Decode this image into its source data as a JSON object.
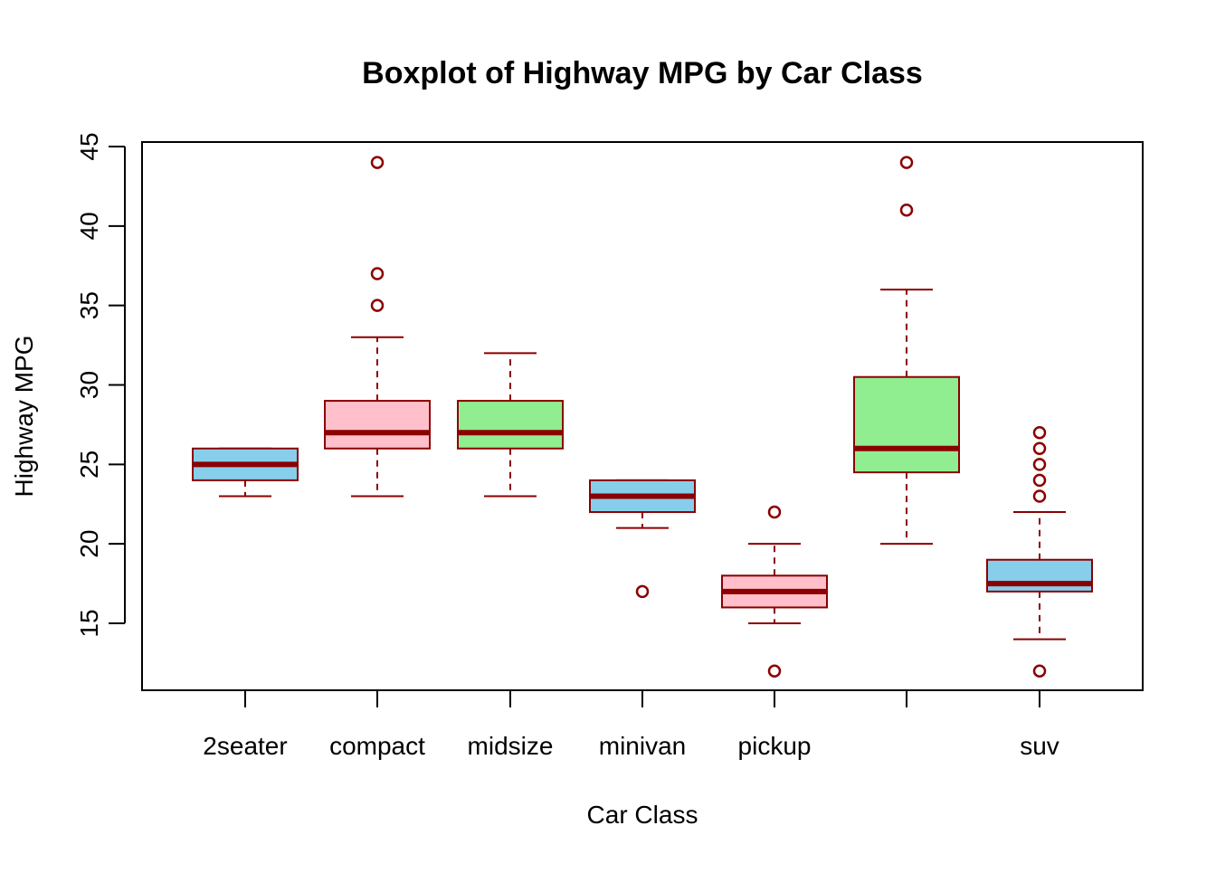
{
  "chart_data": {
    "type": "boxplot",
    "title": "Boxplot of Highway MPG by Car Class",
    "xlabel": "Car Class",
    "ylabel": "Highway MPG",
    "ylim": [
      11,
      45.2
    ],
    "yticks": [
      15,
      20,
      25,
      30,
      35,
      40,
      45
    ],
    "categories": [
      "2seater",
      "compact",
      "midsize",
      "minivan",
      "pickup",
      "",
      "suv"
    ],
    "boxes": [
      {
        "category": "2seater",
        "whisker_low": 23,
        "q1": 24,
        "median": 25,
        "q3": 26,
        "whisker_high": 26,
        "outliers": [],
        "fill": "#87CEEB"
      },
      {
        "category": "compact",
        "whisker_low": 23,
        "q1": 26,
        "median": 27,
        "q3": 29,
        "whisker_high": 33,
        "outliers": [
          35,
          37,
          44
        ],
        "fill": "#FFC0CB"
      },
      {
        "category": "midsize",
        "whisker_low": 23,
        "q1": 26,
        "median": 27,
        "q3": 29,
        "whisker_high": 32,
        "outliers": [],
        "fill": "#90EE90"
      },
      {
        "category": "minivan",
        "whisker_low": 21,
        "q1": 22,
        "median": 23,
        "q3": 24,
        "whisker_high": 24,
        "outliers": [
          17
        ],
        "fill": "#87CEEB"
      },
      {
        "category": "pickup",
        "whisker_low": 15,
        "q1": 16,
        "median": 17,
        "q3": 18,
        "whisker_high": 20,
        "outliers": [
          12,
          22
        ],
        "fill": "#FFC0CB"
      },
      {
        "category": "",
        "whisker_low": 20,
        "q1": 24.5,
        "median": 26,
        "q3": 30.5,
        "whisker_high": 36,
        "outliers": [
          41,
          44
        ],
        "fill": "#90EE90"
      },
      {
        "category": "suv",
        "whisker_low": 14,
        "q1": 17,
        "median": 17.5,
        "q3": 19,
        "whisker_high": 22,
        "outliers": [
          12,
          23,
          24,
          25,
          26,
          27
        ],
        "fill": "#87CEEB"
      }
    ],
    "border_color": "#8B0000",
    "grid": false,
    "legend": "none"
  }
}
